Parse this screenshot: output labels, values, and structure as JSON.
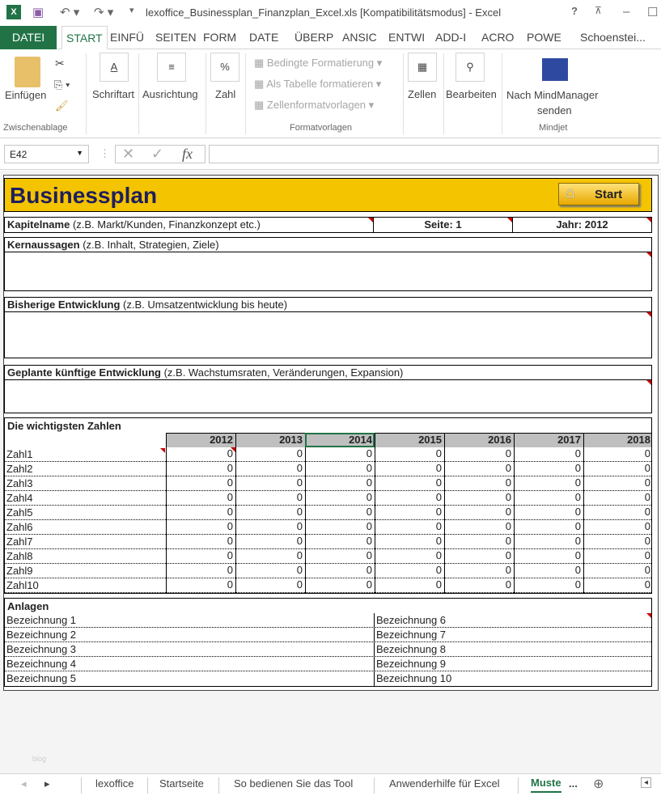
{
  "window": {
    "title": "lexoffice_Businessplan_Finanzplan_Excel.xls  [Kompatibilitätsmodus] - Excel",
    "help": "?"
  },
  "ribbon_tabs": [
    "DATEI",
    "START",
    "EINFÜ",
    "SEITEN",
    "FORM",
    "DATE",
    "ÜBERP",
    "ANSIC",
    "ENTWI",
    "ADD-I",
    "ACRO",
    "POWE"
  ],
  "user": "Schoenstei...",
  "ribbon": {
    "paste": "Einfügen",
    "clipboard_group": "Zwischenablage",
    "font": "Schriftart",
    "alignment": "Ausrichtung",
    "number": "Zahl",
    "cond_format": "Bedingte Formatierung",
    "as_table": "Als Tabelle formatieren",
    "cell_styles": "Zellenformatvorlagen",
    "styles_group": "Formatvorlagen",
    "cells": "Zellen",
    "editing": "Bearbeiten",
    "mindmanager": "Nach MindManager",
    "mindmanager2": "senden",
    "mindjet_group": "Mindjet"
  },
  "formula_bar": {
    "name_box": "E42",
    "fx": "fx",
    "value": ""
  },
  "sheet": {
    "title": "Businessplan",
    "start_button": "Start",
    "accent": "#f5c400",
    "title_color": "#1f1f5c",
    "kapitel_label": "Kapitelname",
    "kapitel_hint": "(z.B. Markt/Kunden, Finanzkonzept etc.)",
    "seite": "Seite: 1",
    "jahr": "Jahr: 2012",
    "sections": [
      {
        "label": "Kernaussagen",
        "hint": "(z.B. Inhalt, Strategien, Ziele)"
      },
      {
        "label": "Bisherige Entwicklung",
        "hint": "(z.B. Umsatzentwicklung bis heute)"
      },
      {
        "label": "Geplante künftige Entwicklung",
        "hint": "(z.B. Wachstumsraten, Veränderungen, Expansion)"
      }
    ],
    "zahlen_title": "Die wichtigsten Zahlen",
    "years": [
      "2012",
      "2013",
      "2014",
      "2015",
      "2016",
      "2017",
      "2018"
    ],
    "rows": [
      {
        "label": "Zahl1",
        "values": [
          "0",
          "0",
          "0",
          "0",
          "0",
          "0",
          "0"
        ]
      },
      {
        "label": "Zahl2",
        "values": [
          "0",
          "0",
          "0",
          "0",
          "0",
          "0",
          "0"
        ]
      },
      {
        "label": "Zahl3",
        "values": [
          "0",
          "0",
          "0",
          "0",
          "0",
          "0",
          "0"
        ]
      },
      {
        "label": "Zahl4",
        "values": [
          "0",
          "0",
          "0",
          "0",
          "0",
          "0",
          "0"
        ]
      },
      {
        "label": "Zahl5",
        "values": [
          "0",
          "0",
          "0",
          "0",
          "0",
          "0",
          "0"
        ]
      },
      {
        "label": "Zahl6",
        "values": [
          "0",
          "0",
          "0",
          "0",
          "0",
          "0",
          "0"
        ]
      },
      {
        "label": "Zahl7",
        "values": [
          "0",
          "0",
          "0",
          "0",
          "0",
          "0",
          "0"
        ]
      },
      {
        "label": "Zahl8",
        "values": [
          "0",
          "0",
          "0",
          "0",
          "0",
          "0",
          "0"
        ]
      },
      {
        "label": "Zahl9",
        "values": [
          "0",
          "0",
          "0",
          "0",
          "0",
          "0",
          "0"
        ]
      },
      {
        "label": "Zahl10",
        "values": [
          "0",
          "0",
          "0",
          "0",
          "0",
          "0",
          "0"
        ]
      }
    ],
    "anlagen_title": "Anlagen",
    "anlagen_left": [
      "Bezeichnung 1",
      "Bezeichnung 2",
      "Bezeichnung 3",
      "Bezeichnung 4",
      "Bezeichnung 5"
    ],
    "anlagen_right": [
      "Bezeichnung 6",
      "Bezeichnung 7",
      "Bezeichnung 8",
      "Bezeichnung 9",
      "Bezeichnung 10"
    ],
    "watermark": "blog"
  },
  "sheet_tabs": [
    "lexoffice",
    "Startseite",
    "So bedienen Sie das Tool",
    "Anwenderhilfe für Excel",
    "Muste"
  ],
  "sheet_tabs_more": "..."
}
